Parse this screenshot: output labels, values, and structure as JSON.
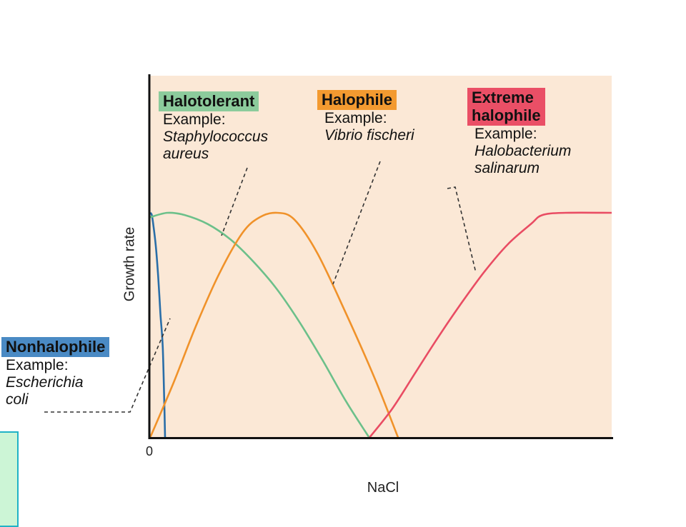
{
  "chart_data": {
    "type": "line",
    "xlabel": "NaCl",
    "ylabel": "Growth rate",
    "x_tick_labels": [
      "0"
    ],
    "background_color": "#fbe8d6",
    "series": [
      {
        "name": "Nonhalophile",
        "example_label": "Example:",
        "example_species": [
          "Escherichia",
          "coli"
        ],
        "color": "#2a6ea8",
        "label_box_color": "#4a8ac4",
        "points": [
          [
            0,
            100
          ],
          [
            0.3,
            99
          ],
          [
            0.6,
            94
          ],
          [
            1,
            85
          ],
          [
            1.4,
            72
          ],
          [
            1.8,
            55
          ],
          [
            2.2,
            40
          ],
          [
            2.5,
            12
          ],
          [
            2.6,
            0
          ]
        ]
      },
      {
        "name": "Halotolerant",
        "example_label": "Example:",
        "example_species": [
          "Staphylococcus",
          "aureus"
        ],
        "color": "#6cc08a",
        "label_box_color": "#8ccb9c",
        "points": [
          [
            0,
            98
          ],
          [
            3,
            100
          ],
          [
            6,
            99
          ],
          [
            10,
            95
          ],
          [
            14,
            88
          ],
          [
            18,
            78
          ],
          [
            22,
            66
          ],
          [
            26,
            51
          ],
          [
            30,
            34
          ],
          [
            34,
            16
          ],
          [
            38,
            0
          ]
        ]
      },
      {
        "name": "Halophile",
        "example_label": "Example:",
        "example_species": [
          "Vibrio fischeri"
        ],
        "color": "#f0922a",
        "label_box_color": "#f39a30",
        "points": [
          [
            0,
            0
          ],
          [
            4,
            24
          ],
          [
            8,
            50
          ],
          [
            12,
            73
          ],
          [
            16,
            91
          ],
          [
            19,
            98
          ],
          [
            22,
            100
          ],
          [
            25,
            97
          ],
          [
            29,
            82
          ],
          [
            34,
            55
          ],
          [
            39,
            26
          ],
          [
            43,
            0
          ]
        ]
      },
      {
        "name": "Extreme\nhalophile",
        "name_lines": [
          "Extreme",
          "halophile"
        ],
        "example_label": "Example:",
        "example_species": [
          "Halobacterium",
          "salinarum"
        ],
        "color": "#e94c63",
        "label_box_color": "#ea4f66",
        "points": [
          [
            38,
            0
          ],
          [
            42,
            13
          ],
          [
            46,
            29
          ],
          [
            50,
            45
          ],
          [
            54,
            60
          ],
          [
            58,
            74
          ],
          [
            62,
            86
          ],
          [
            66,
            95
          ],
          [
            68,
            99
          ],
          [
            72,
            100
          ],
          [
            80,
            100
          ]
        ]
      }
    ],
    "xlim": [
      0,
      80
    ],
    "ylim": [
      0,
      100
    ]
  }
}
